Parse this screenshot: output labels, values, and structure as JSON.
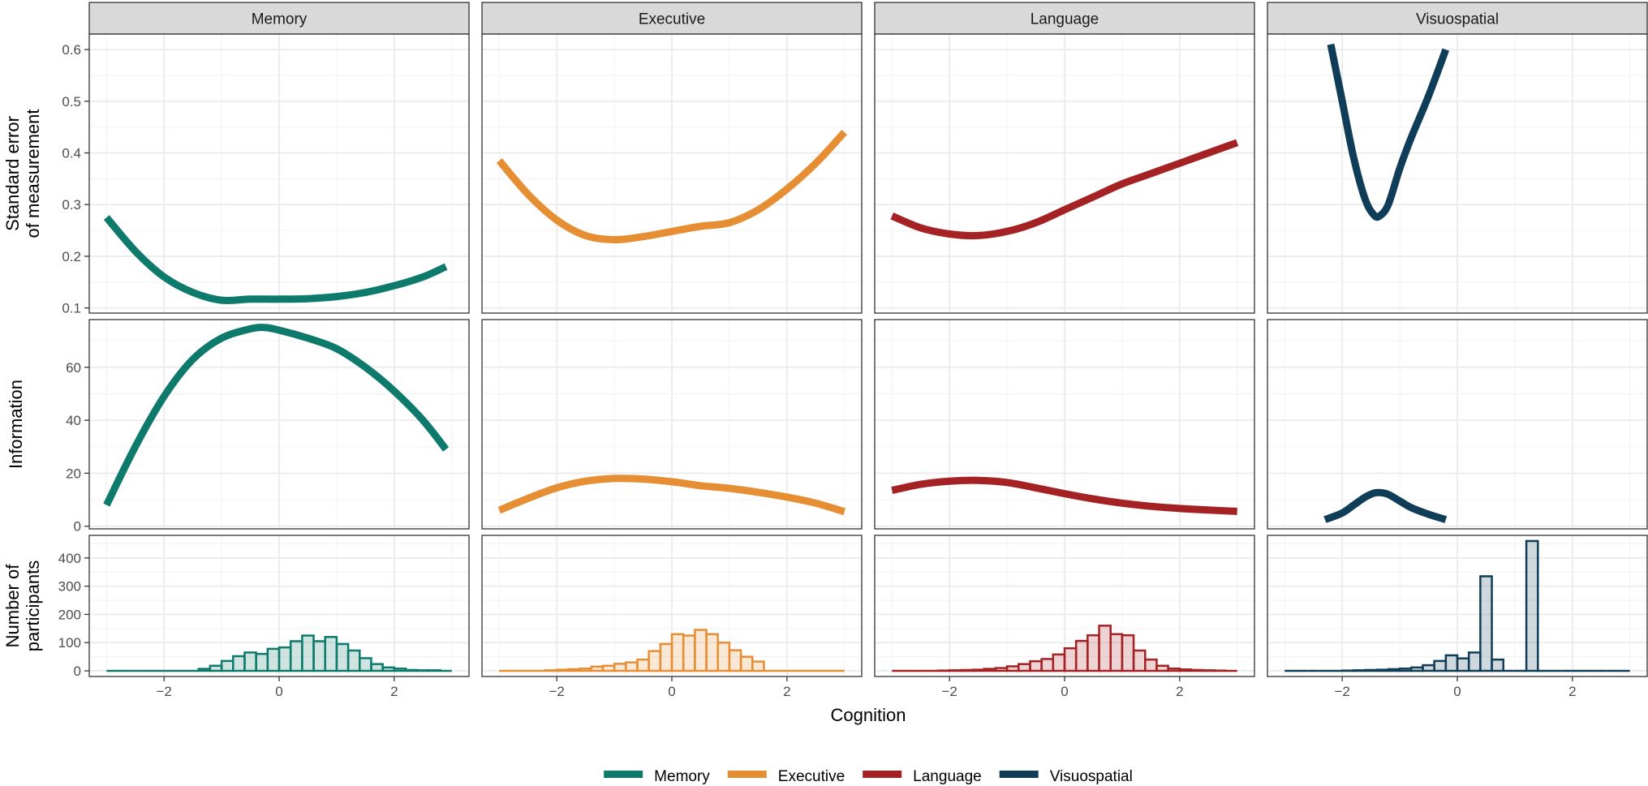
{
  "chart_data": {
    "type": "line",
    "layout": "facet-grid",
    "facets": [
      "Memory",
      "Executive",
      "Language",
      "Visuospatial"
    ],
    "rows": [
      {
        "id": "sem",
        "ylabel_lines": [
          "Standard error",
          "of measurement"
        ],
        "yticks": [
          0.1,
          0.2,
          0.3,
          0.4,
          0.5,
          0.6
        ],
        "ylim": [
          0.09,
          0.63
        ]
      },
      {
        "id": "info",
        "ylabel_lines": [
          "Information"
        ],
        "yticks": [
          0,
          20,
          40,
          60
        ],
        "ylim": [
          -1,
          78
        ]
      },
      {
        "id": "count",
        "ylabel_lines": [
          "Number of",
          "participants"
        ],
        "yticks": [
          0,
          100,
          200,
          300,
          400
        ],
        "ylim": [
          -20,
          480
        ]
      }
    ],
    "xlabel": "Cognition",
    "xticks": [
      -2,
      0,
      2
    ],
    "xtick_labels": [
      "−2",
      "0",
      "2"
    ],
    "xlim": [
      -3.3,
      3.3
    ],
    "grid": true,
    "legend": {
      "placement": "bottom",
      "entries": [
        {
          "name": "Memory",
          "color": "#0d7a6b"
        },
        {
          "name": "Executive",
          "color": "#e68e33"
        },
        {
          "name": "Language",
          "color": "#a52224"
        },
        {
          "name": "Visuospatial",
          "color": "#0f3d57"
        }
      ]
    },
    "sem_curves": {
      "Memory": {
        "x": [
          -3,
          -2.5,
          -2,
          -1.5,
          -1,
          -0.5,
          0,
          0.5,
          1,
          1.5,
          2,
          2.5,
          2.9
        ],
        "y": [
          0.275,
          0.21,
          0.16,
          0.13,
          0.115,
          0.117,
          0.117,
          0.118,
          0.122,
          0.13,
          0.143,
          0.16,
          0.18
        ]
      },
      "Executive": {
        "x": [
          -3,
          -2.5,
          -2,
          -1.5,
          -1,
          -0.5,
          0,
          0.5,
          1,
          1.5,
          2,
          2.5,
          3
        ],
        "y": [
          0.385,
          0.32,
          0.27,
          0.24,
          0.232,
          0.238,
          0.248,
          0.258,
          0.265,
          0.29,
          0.33,
          0.38,
          0.44
        ]
      },
      "Language": {
        "x": [
          -3,
          -2.5,
          -2,
          -1.5,
          -1,
          -0.5,
          0,
          0.5,
          1,
          1.5,
          2,
          2.5,
          3
        ],
        "y": [
          0.278,
          0.255,
          0.243,
          0.24,
          0.248,
          0.265,
          0.29,
          0.315,
          0.34,
          0.36,
          0.38,
          0.4,
          0.42
        ]
      },
      "Visuospatial": {
        "x": [
          -2.2,
          -2.0,
          -1.8,
          -1.6,
          -1.45,
          -1.35,
          -1.2,
          -1.0,
          -0.8,
          -0.5,
          -0.2
        ],
        "y": [
          0.61,
          0.5,
          0.39,
          0.31,
          0.28,
          0.278,
          0.3,
          0.37,
          0.43,
          0.51,
          0.6
        ]
      }
    },
    "info_curves": {
      "Memory": {
        "x": [
          -3,
          -2.5,
          -2,
          -1.5,
          -1,
          -0.5,
          -0.25,
          0,
          0.5,
          1,
          1.5,
          2,
          2.5,
          2.9
        ],
        "y": [
          8,
          30,
          49,
          63,
          71,
          74.5,
          75,
          74,
          71,
          67,
          60,
          51,
          40,
          29
        ]
      },
      "Executive": {
        "x": [
          -3,
          -2.5,
          -2,
          -1.5,
          -1,
          -0.5,
          0,
          0.5,
          1,
          1.5,
          2,
          2.5,
          3
        ],
        "y": [
          6,
          10.5,
          14.5,
          17,
          18,
          17.8,
          16.8,
          15.3,
          14.3,
          12.8,
          11,
          8.7,
          5.5
        ]
      },
      "Language": {
        "x": [
          -3,
          -2.5,
          -2,
          -1.5,
          -1,
          -0.5,
          0,
          0.5,
          1,
          1.5,
          2,
          2.5,
          3
        ],
        "y": [
          13.5,
          15.8,
          17,
          17.3,
          16.5,
          14.5,
          12.3,
          10.3,
          8.7,
          7.5,
          6.7,
          6.1,
          5.6
        ]
      },
      "Visuospatial": {
        "x": [
          -2.3,
          -2.0,
          -1.8,
          -1.6,
          -1.45,
          -1.35,
          -1.2,
          -1.0,
          -0.8,
          -0.5,
          -0.2
        ],
        "y": [
          2.5,
          5,
          8,
          11,
          12.5,
          12.7,
          12,
          9.5,
          7,
          4.5,
          2.5
        ]
      }
    },
    "histograms": {
      "bin_width": 0.2,
      "bin_starts": [
        -3.0,
        -2.8,
        -2.6,
        -2.4,
        -2.2,
        -2.0,
        -1.8,
        -1.6,
        -1.4,
        -1.2,
        -1.0,
        -0.8,
        -0.6,
        -0.4,
        -0.2,
        0.0,
        0.2,
        0.4,
        0.6,
        0.8,
        1.0,
        1.2,
        1.4,
        1.6,
        1.8,
        2.0,
        2.2,
        2.4,
        2.6,
        2.8
      ],
      "Memory": [
        0,
        0,
        0,
        0,
        0,
        0,
        0,
        0,
        7,
        18,
        35,
        52,
        65,
        60,
        78,
        83,
        105,
        125,
        105,
        120,
        95,
        72,
        45,
        24,
        12,
        8,
        3,
        2,
        2,
        0
      ],
      "Executive": [
        0,
        0,
        0,
        0,
        2,
        4,
        6,
        8,
        15,
        18,
        25,
        30,
        40,
        70,
        95,
        130,
        125,
        145,
        130,
        100,
        73,
        50,
        33,
        0,
        0,
        0,
        0,
        0,
        0,
        0
      ],
      "Language": [
        0,
        0,
        0,
        0,
        1,
        2,
        3,
        4,
        7,
        10,
        16,
        24,
        34,
        42,
        58,
        80,
        106,
        126,
        160,
        130,
        126,
        72,
        40,
        18,
        8,
        5,
        3,
        2,
        1,
        0
      ],
      "Visuospatial": [
        0,
        0,
        0,
        0,
        0,
        1,
        2,
        3,
        4,
        6,
        8,
        12,
        20,
        35,
        55,
        44,
        65,
        335,
        40,
        0,
        0,
        460,
        0,
        0,
        0,
        0,
        0,
        0,
        0,
        0
      ]
    }
  }
}
